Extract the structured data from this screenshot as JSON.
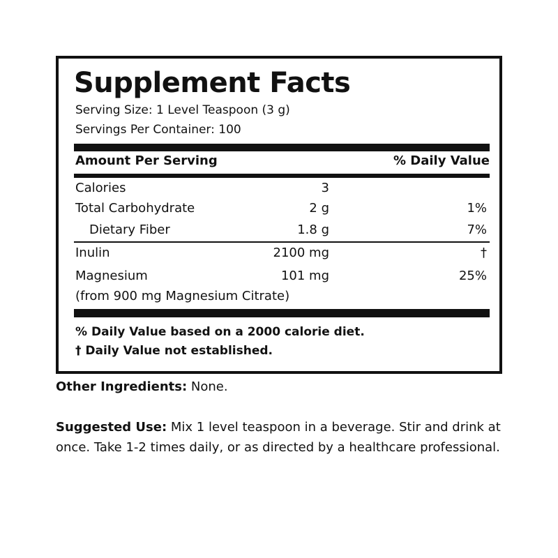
{
  "title": "Supplement Facts",
  "serving_size": "Serving Size: 1 Level Teaspoon (3 g)",
  "servings_per_container": "Servings Per Container: 100",
  "header": {
    "amount": "Amount Per Serving",
    "daily_value": "% Daily Value"
  },
  "rows": [
    {
      "label": "Calories",
      "amount": "3",
      "dv": ""
    },
    {
      "label": "Total Carbohydrate",
      "amount": "2 g",
      "dv": "1%"
    },
    {
      "label": "Dietary Fiber",
      "amount": "1.8 g",
      "dv": "7%"
    },
    {
      "label": "Inulin",
      "amount": "2100 mg",
      "dv": "†"
    },
    {
      "label": "Magnesium",
      "amount": "101 mg",
      "dv": "25%"
    },
    {
      "label": "(from 900 mg Magnesium Citrate)",
      "amount": "",
      "dv": ""
    }
  ],
  "footnotes": [
    "% Daily Value based on a 2000 calorie diet.",
    "† Daily Value not established."
  ],
  "other_ingredients": {
    "label": "Other Ingredients:",
    "text": " None."
  },
  "suggested_use": {
    "label": "Suggested Use:",
    "text": " Mix 1 level teaspoon in a beverage. Stir and drink at once. Take 1-2 times daily, or as directed by a healthcare professional."
  }
}
